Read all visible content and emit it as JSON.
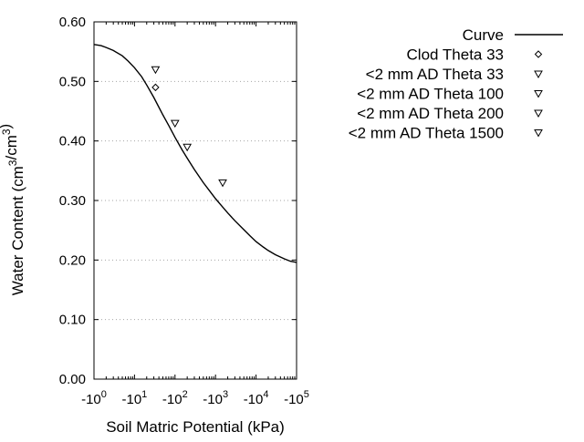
{
  "chart_data": {
    "type": "scatter",
    "title": "",
    "xlabel": "Soil Matric Potential (kPa)",
    "ylabel": "Water Content (cm³/cm³)",
    "xscale": "log (negative values)",
    "x_tick_labels": [
      "-10^0",
      "-10^1",
      "-10^2",
      "-10^3",
      "-10^4",
      "-10^5"
    ],
    "x_tick_values": [
      -1,
      -10,
      -100,
      -1000,
      -10000,
      -100000
    ],
    "ylim": [
      0,
      0.6
    ],
    "y_tick_labels": [
      "0.00",
      "0.10",
      "0.20",
      "0.30",
      "0.40",
      "0.50",
      "0.60"
    ],
    "y_ticks": [
      0,
      0.1,
      0.2,
      0.3,
      0.4,
      0.5,
      0.6
    ],
    "grid": "horizontal dotted",
    "legend_position": "right",
    "series": [
      {
        "name": "Curve",
        "type": "line",
        "color": "#000000",
        "marker": "line",
        "x": [
          -1,
          -1.5,
          -2,
          -3,
          -5,
          -7,
          -10,
          -15,
          -20,
          -30,
          -50,
          -70,
          -100,
          -150,
          -200,
          -300,
          -500,
          -700,
          -1000,
          -1500,
          -2000,
          -3000,
          -5000,
          -7000,
          -10000,
          -15000,
          -20000,
          -30000,
          -50000,
          -70000,
          -100000
        ],
        "y": [
          0.562,
          0.56,
          0.557,
          0.552,
          0.543,
          0.534,
          0.523,
          0.508,
          0.494,
          0.473,
          0.444,
          0.426,
          0.406,
          0.385,
          0.371,
          0.352,
          0.33,
          0.317,
          0.303,
          0.289,
          0.279,
          0.266,
          0.251,
          0.241,
          0.231,
          0.222,
          0.216,
          0.209,
          0.202,
          0.198,
          0.196
        ]
      },
      {
        "name": "Clod Theta 33",
        "type": "scatter",
        "color": "#000000",
        "marker": "diamond",
        "x": [
          -33
        ],
        "y": [
          0.49
        ]
      },
      {
        "name": "<2 mm AD Theta 33",
        "type": "scatter",
        "color": "#000000",
        "marker": "triangle-down",
        "x": [
          -33
        ],
        "y": [
          0.52
        ]
      },
      {
        "name": "<2 mm AD Theta 100",
        "type": "scatter",
        "color": "#000000",
        "marker": "triangle-down",
        "x": [
          -100
        ],
        "y": [
          0.43
        ]
      },
      {
        "name": "<2 mm AD Theta 200",
        "type": "scatter",
        "color": "#000000",
        "marker": "triangle-down",
        "x": [
          -200
        ],
        "y": [
          0.39
        ]
      },
      {
        "name": "<2 mm AD Theta 1500",
        "type": "scatter",
        "color": "#000000",
        "marker": "triangle-down",
        "x": [
          -1500
        ],
        "y": [
          0.33
        ]
      }
    ]
  }
}
